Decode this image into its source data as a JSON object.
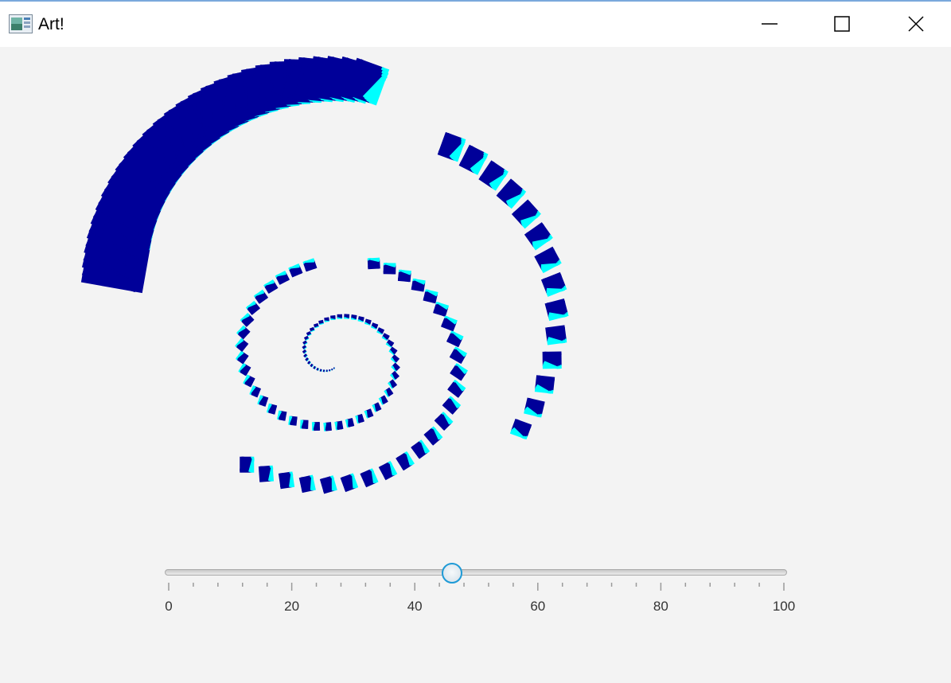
{
  "window": {
    "title": "Art!",
    "app_icon": "java-app-icon",
    "controls": {
      "minimize": "minimize-icon",
      "maximize": "maximize-icon",
      "close": "close-icon"
    }
  },
  "art": {
    "description_icon": "spiral-artwork",
    "colors": {
      "dark": "#000099",
      "light": "#00ffff"
    }
  },
  "slider": {
    "min": 0,
    "max": 100,
    "value": 46,
    "major_tick_unit": 20,
    "minor_tick_count": 4,
    "labels": [
      "0",
      "20",
      "40",
      "60",
      "80",
      "100"
    ],
    "accent": "#1e9ad6"
  }
}
